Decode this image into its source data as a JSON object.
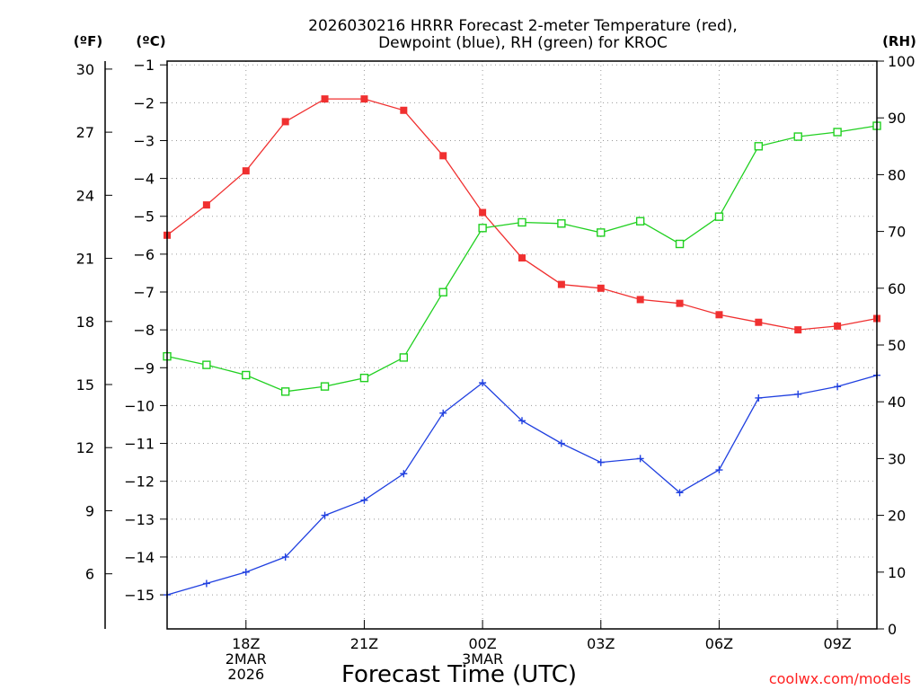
{
  "chart_data": {
    "type": "line",
    "title_lines": [
      "2026030216 HRRR Forecast 2-meter Temperature (red),",
      "Dewpoint (blue), RH (green) for KROC"
    ],
    "xlabel": "Forecast Time (UTC)",
    "credit": "coolwx.com/models",
    "units": {
      "fahrenheit": "(ºF)",
      "celsius": "(ºC)",
      "rh": "(RH)"
    },
    "x_hours": [
      16,
      17,
      18,
      19,
      20,
      21,
      22,
      23,
      24,
      25,
      26,
      27,
      28,
      29,
      30,
      31,
      32,
      33,
      34
    ],
    "x_ticks": [
      {
        "hour": 18,
        "lines": [
          "18Z",
          "2MAR",
          "2026"
        ]
      },
      {
        "hour": 21,
        "lines": [
          "21Z"
        ]
      },
      {
        "hour": 24,
        "lines": [
          "00Z",
          "3MAR"
        ]
      },
      {
        "hour": 27,
        "lines": [
          "03Z"
        ]
      },
      {
        "hour": 30,
        "lines": [
          "06Z"
        ]
      },
      {
        "hour": 33,
        "lines": [
          "09Z"
        ]
      }
    ],
    "celsius_axis": {
      "range": [
        -15.9,
        -0.9
      ],
      "ticks": [
        -1,
        -2,
        -3,
        -4,
        -5,
        -6,
        -7,
        -8,
        -9,
        -10,
        -11,
        -12,
        -13,
        -14,
        -15
      ]
    },
    "fahrenheit_axis": {
      "range": [
        3.38,
        30.38
      ],
      "ticks": [
        "30",
        "27",
        "24",
        "21",
        "18",
        "15",
        "12",
        "9",
        "6"
      ]
    },
    "rh_axis": {
      "range": [
        0,
        100
      ],
      "ticks": [
        "100",
        "90",
        "80",
        "70",
        "60",
        "50",
        "40",
        "30",
        "20",
        "10",
        "0"
      ]
    },
    "series": [
      {
        "name": "Temperature",
        "unit": "C",
        "color": "#f03030",
        "marker": "filled-square",
        "values": [
          -5.5,
          -4.7,
          -3.8,
          -2.5,
          -1.9,
          -1.9,
          -2.2,
          -3.4,
          -4.9,
          -6.1,
          -6.8,
          -6.9,
          -7.2,
          -7.3,
          -7.6,
          -7.8,
          -8.0,
          -7.9,
          -7.7
        ]
      },
      {
        "name": "Dewpoint",
        "unit": "C",
        "color": "#2040e0",
        "marker": "plus",
        "values": [
          -15.0,
          -14.7,
          -14.4,
          -14.0,
          -12.9,
          -12.5,
          -11.8,
          -10.2,
          -9.4,
          -10.4,
          -11.0,
          -11.5,
          -11.4,
          -12.3,
          -11.7,
          -9.8,
          -9.7,
          -9.5,
          -9.2
        ]
      },
      {
        "name": "RH",
        "unit": "%",
        "color": "#20d020",
        "marker": "open-square",
        "values": [
          48,
          46.5,
          44.7,
          41.8,
          42.7,
          44.2,
          47.8,
          59.3,
          70.6,
          71.6,
          71.4,
          69.8,
          71.8,
          67.8,
          72.6,
          85,
          86.7,
          87.5,
          88.6
        ]
      }
    ]
  }
}
